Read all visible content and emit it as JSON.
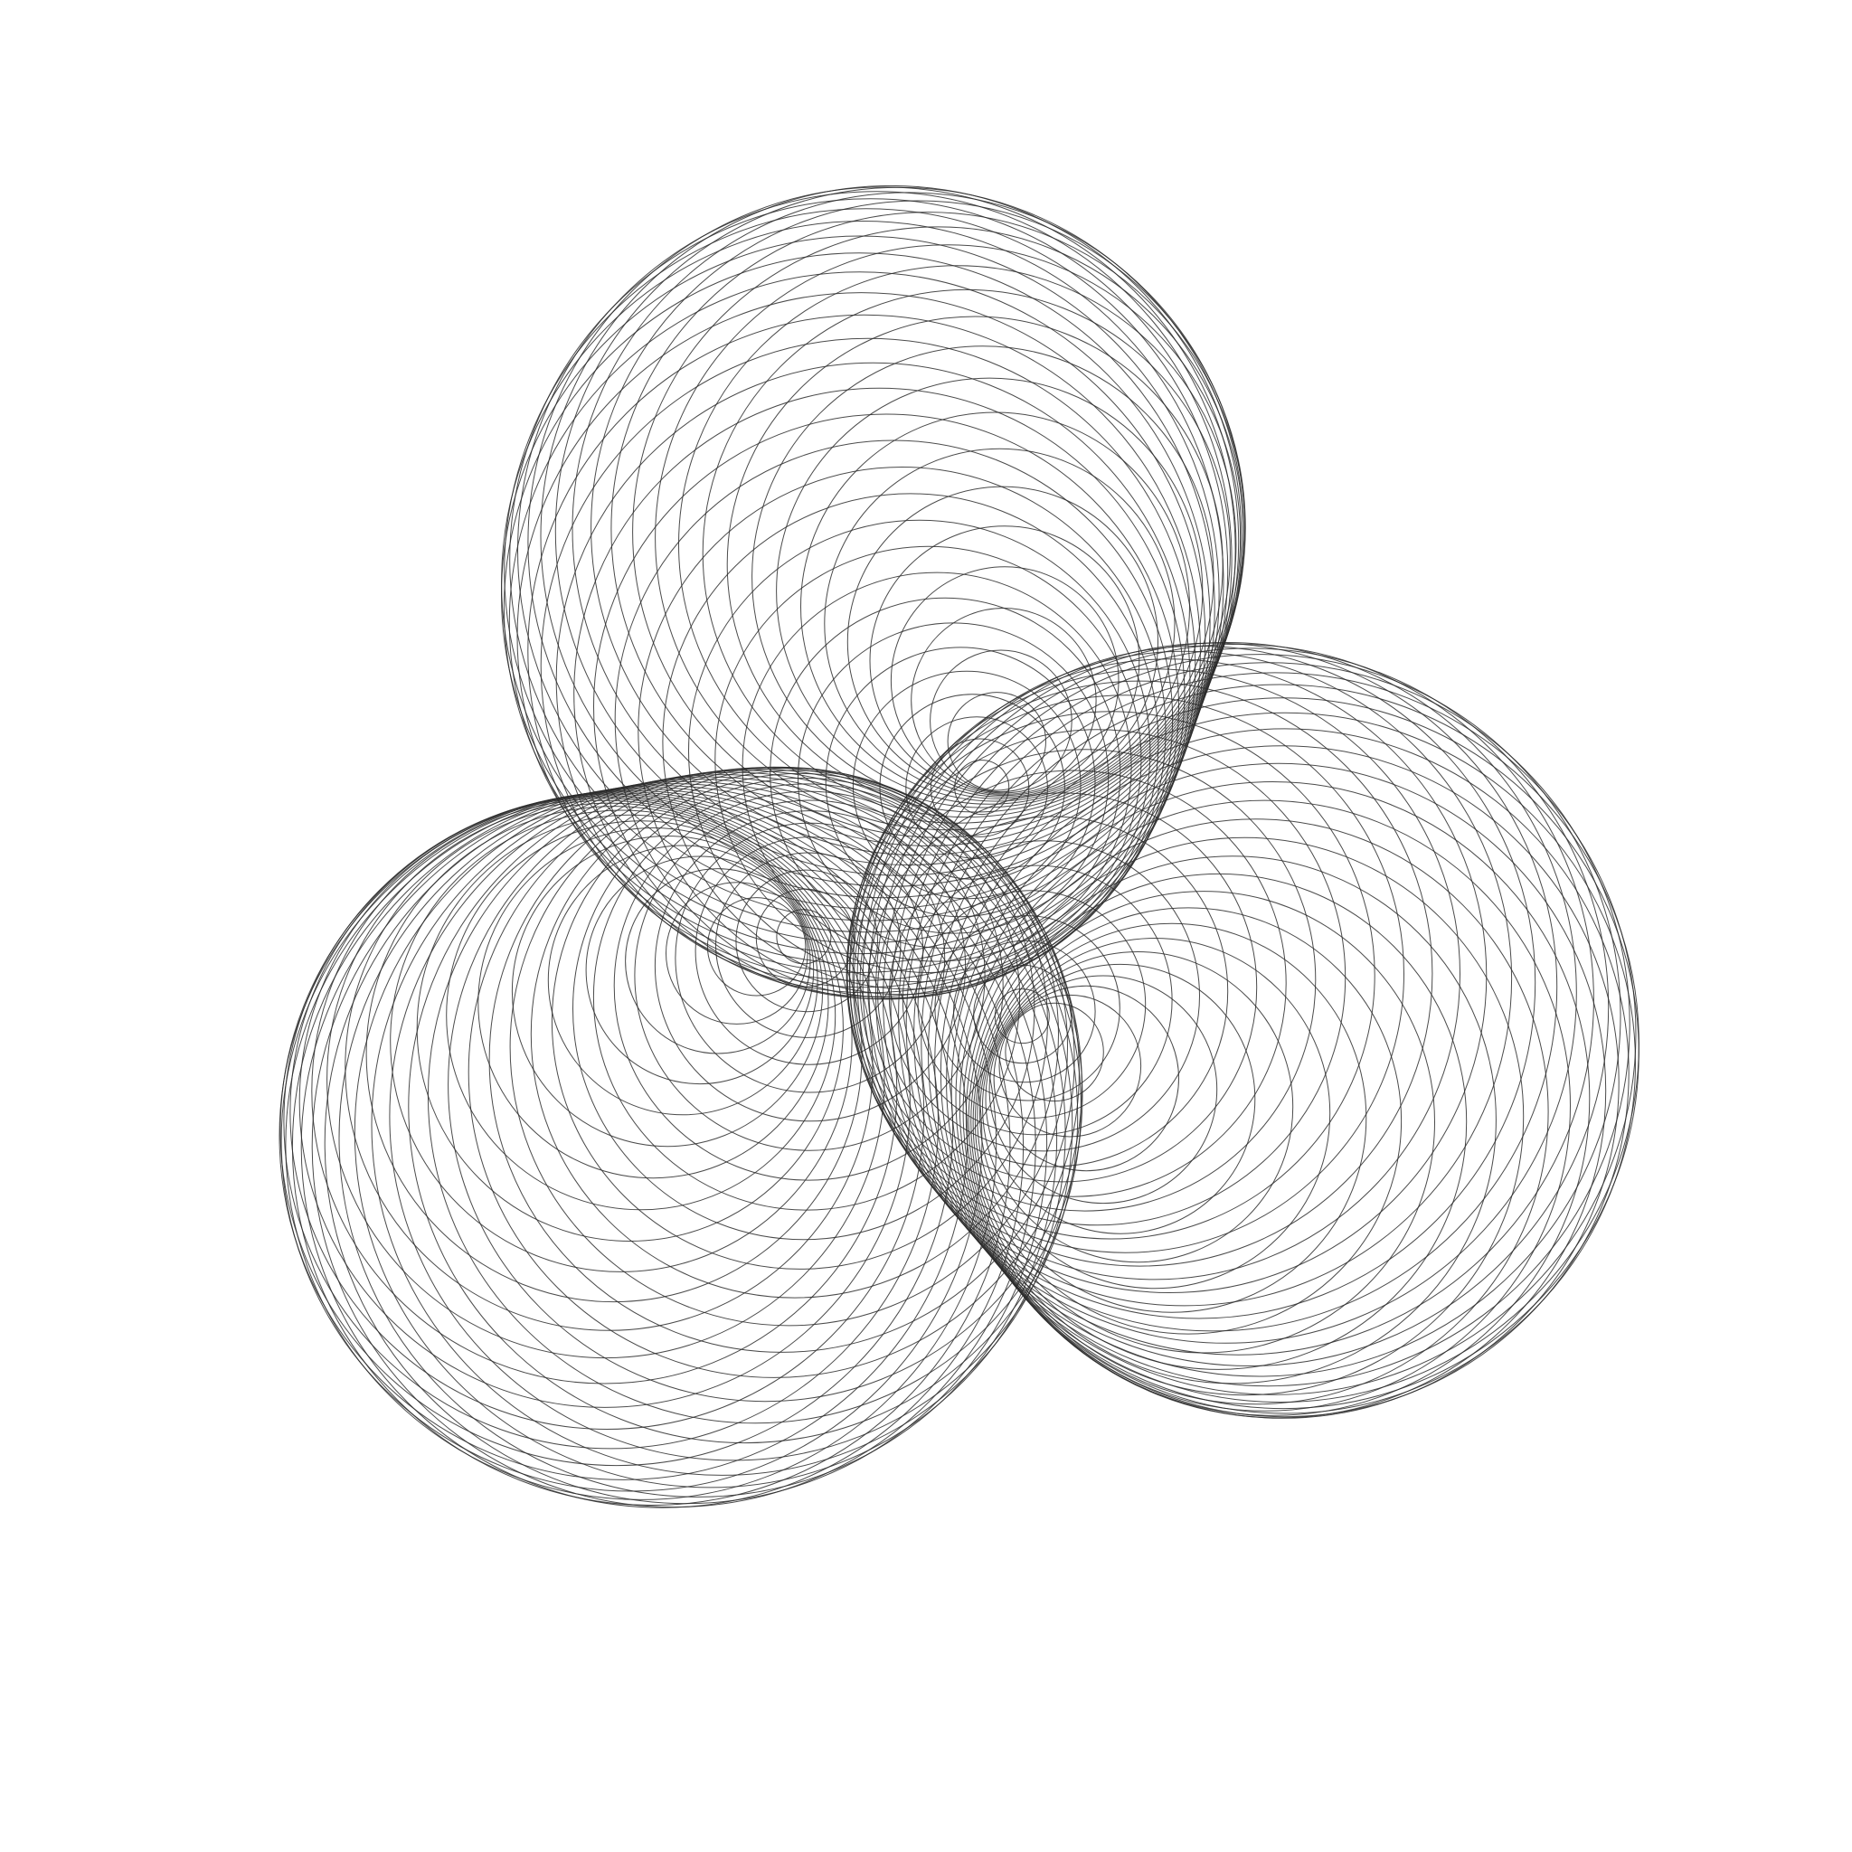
{
  "artwork": {
    "icon": "geometric-circle-pattern",
    "background_color": "#ffffff",
    "stroke_color": "#2b2b2b",
    "lobes": 3,
    "circles_per_lobe": 48
  }
}
